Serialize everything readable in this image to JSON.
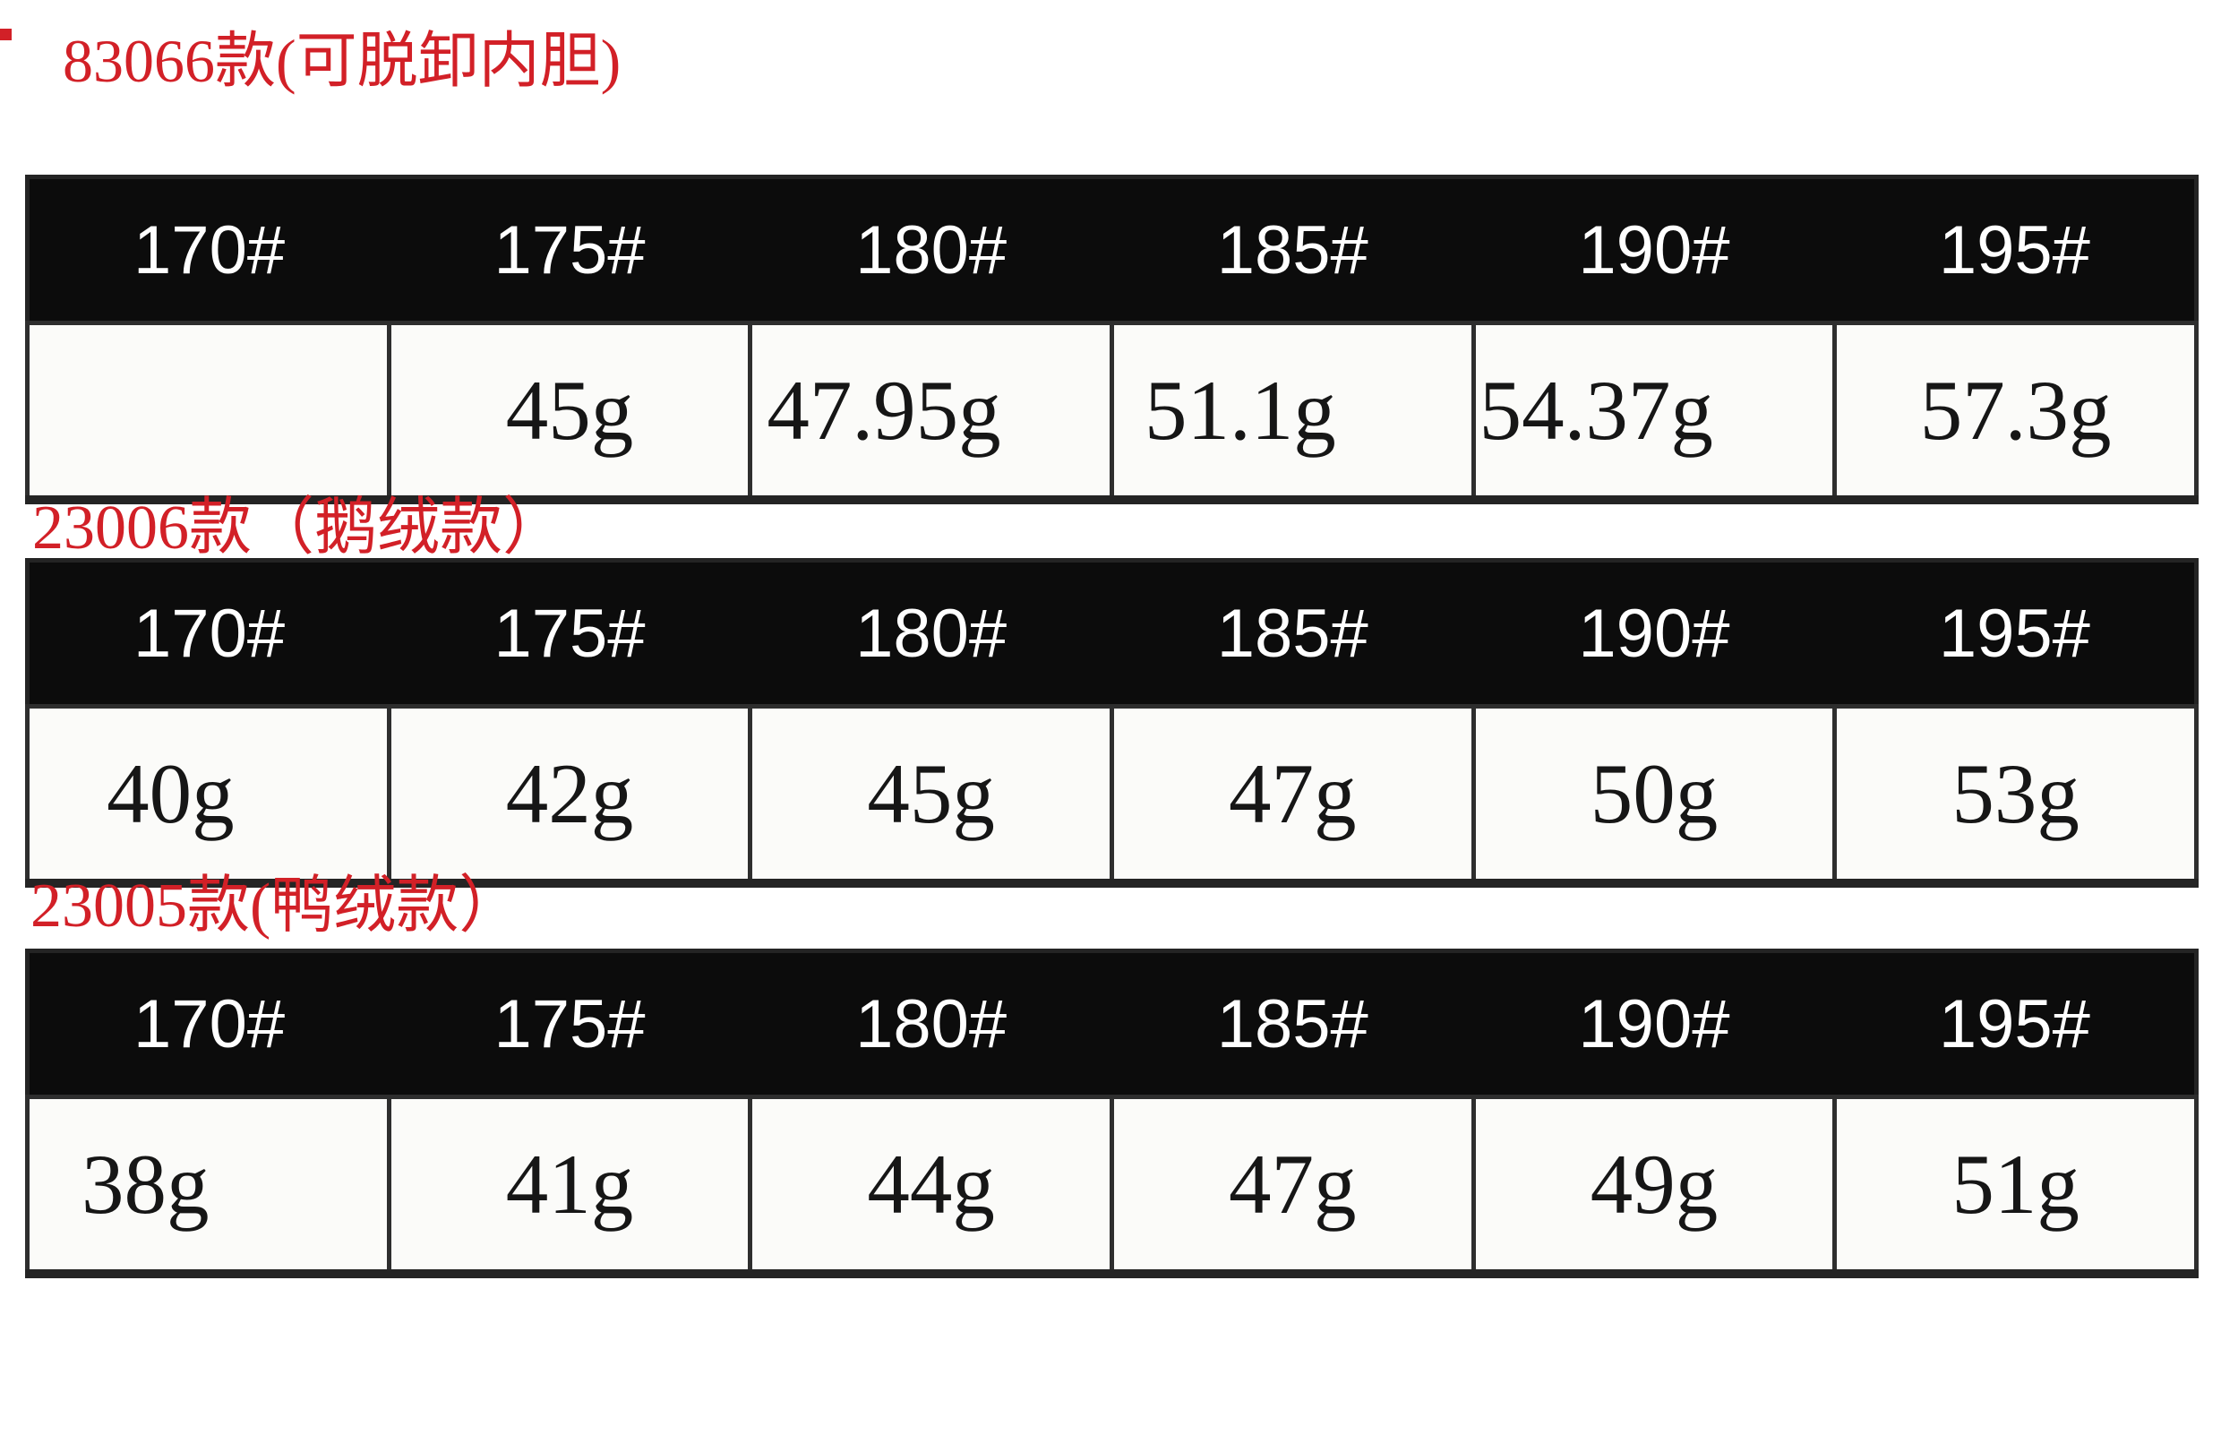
{
  "colors": {
    "heading_red": "#d22027",
    "header_band_black": "#0c0c0c",
    "header_text_white": "#ffffff",
    "cell_text_black": "#161616",
    "border_dark": "#2e2e2e"
  },
  "chart_data": [
    {
      "type": "table",
      "title": "83066款(可脱卸内胆)",
      "columns": [
        "170#",
        "175#",
        "180#",
        "185#",
        "190#",
        "195#"
      ],
      "rows": [
        [
          "",
          "45g",
          "47.95g",
          "51.1g",
          "54.37g",
          "57.3g"
        ]
      ]
    },
    {
      "type": "table",
      "title": "23006款（鹅绒款）",
      "columns": [
        "170#",
        "175#",
        "180#",
        "185#",
        "190#",
        "195#"
      ],
      "rows": [
        [
          "40g",
          "42g",
          "45g",
          "47g",
          "50g",
          "53g"
        ]
      ]
    },
    {
      "type": "table",
      "title": "23005款(鸭绒款）",
      "columns": [
        "170#",
        "175#",
        "180#",
        "185#",
        "190#",
        "195#"
      ],
      "rows": [
        [
          "38g",
          "41g",
          "44g",
          "47g",
          "49g",
          "51g"
        ]
      ]
    }
  ]
}
